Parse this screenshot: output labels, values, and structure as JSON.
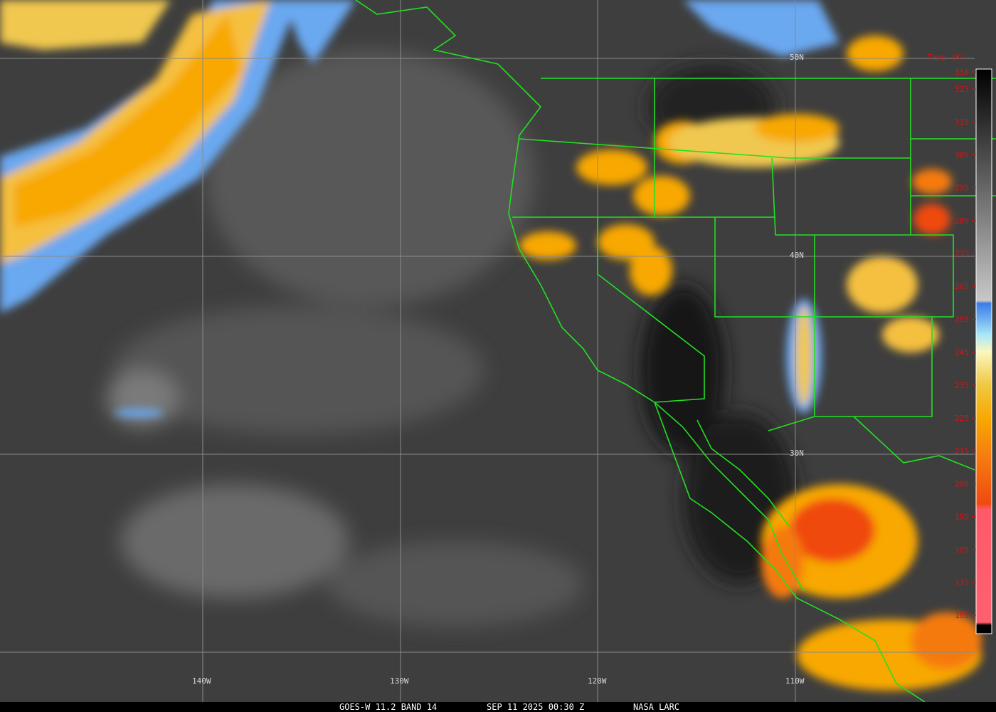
{
  "map": {
    "latitude_labels": [
      "50N",
      "40N",
      "30N"
    ],
    "longitude_labels": [
      "140W",
      "130W",
      "120W",
      "110W"
    ],
    "legend": {
      "title": "Temp (K)",
      "ticks": [
        330,
        325,
        315,
        305,
        295,
        285,
        275,
        265,
        255,
        245,
        235,
        225,
        215,
        205,
        195,
        185,
        175,
        165
      ]
    },
    "footer": {
      "satellite": "GOES-W 11.2 BAND 14",
      "time": "SEP 11 2025 00:30 Z",
      "credit": "NASA LARC"
    }
  }
}
